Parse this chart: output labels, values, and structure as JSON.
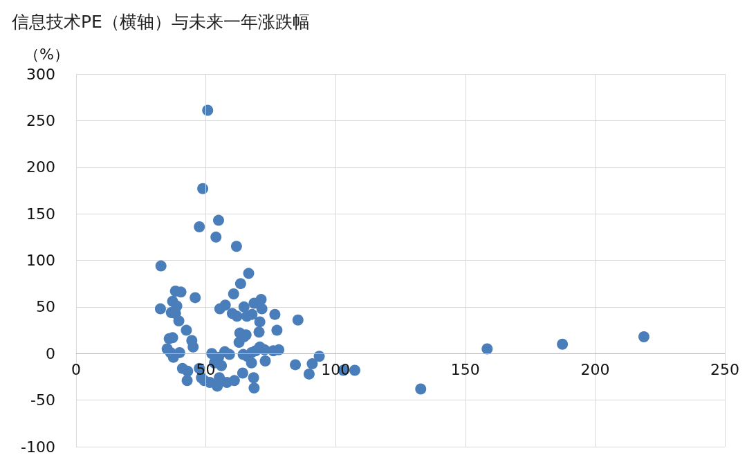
{
  "chart_data": {
    "type": "scatter",
    "title": "信息技术PE（横轴）与未来一年涨跌幅",
    "ylabel": "（%）",
    "xlim": [
      0,
      250
    ],
    "xticks": [
      0,
      50,
      100,
      150,
      200,
      250
    ],
    "ylim": [
      -100,
      300
    ],
    "yticks": [
      -100,
      -50,
      0,
      50,
      100,
      150,
      200,
      250,
      300
    ],
    "grid": true,
    "marker": "circle",
    "series": [
      {
        "color": "#4a7ebb",
        "x": [
          32.5,
          32.7,
          50.7,
          48.8,
          47.5,
          54.9,
          53.9,
          61.8,
          66.5,
          63.4,
          60.7,
          45.9,
          38.3,
          40.4,
          37.2,
          38.8,
          36.7,
          38.3,
          39.6,
          42.5,
          35.9,
          37.2,
          44.6,
          45.1,
          35.1,
          36.4,
          37.5,
          39.9,
          41,
          43,
          42.8,
          47.5,
          48.3,
          49.4,
          51.5,
          54.4,
          55.2,
          58.1,
          61,
          52.3,
          53.3,
          54.9,
          56,
          57.3,
          59.1,
          55.4,
          57.5,
          60.2,
          62,
          64.7,
          65.8,
          67.8,
          68.6,
          71.3,
          71.6,
          70.8,
          70.5,
          63.1,
          64.7,
          62.8,
          64.4,
          66,
          67.6,
          69.2,
          70.8,
          72.6,
          72.9,
          76,
          78.1,
          76.6,
          77.4,
          64.2,
          68.4,
          68.6,
          85.5,
          84.5,
          93.7,
          91,
          89.8,
          103,
          107.4,
          132.8,
          158.4,
          187.4,
          218.8,
          67.6,
          65.5
        ],
        "values": [
          48,
          94,
          261,
          177,
          136,
          143,
          125,
          115,
          86,
          75,
          64,
          60,
          67,
          66,
          56,
          51,
          44,
          43,
          35,
          25,
          16,
          17,
          14,
          7,
          5,
          1,
          -4,
          1,
          -16,
          -19,
          -29,
          -16,
          -26,
          -29,
          -31,
          -35,
          -26,
          -31,
          -29,
          0,
          -10,
          -4,
          -13,
          2,
          -1,
          48,
          52,
          43,
          40,
          50,
          40,
          42,
          54,
          58,
          48,
          34,
          23,
          22,
          18,
          12,
          -1,
          -3,
          1,
          3,
          7,
          4,
          -8,
          3,
          4,
          42,
          25,
          -21,
          -26,
          -37,
          36,
          -12,
          -3,
          -11,
          -22,
          -18,
          -18,
          -38,
          5,
          10,
          18,
          -10,
          20
        ]
      }
    ]
  }
}
